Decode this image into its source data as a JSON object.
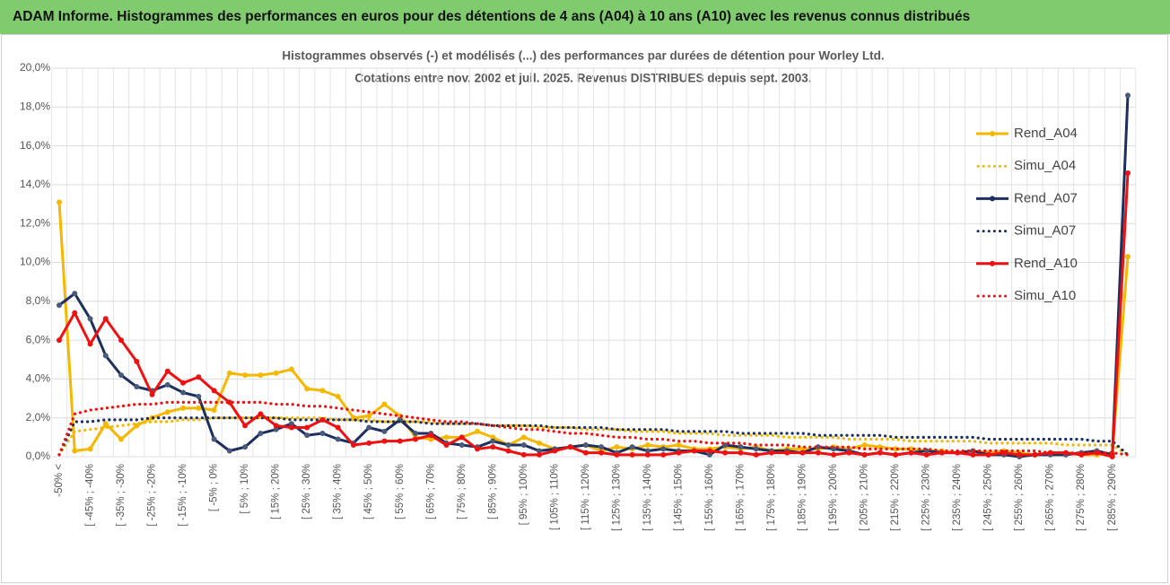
{
  "header": {
    "title": "ADAM Informe. Histogrammes des performances en euros pour des détentions de 4 ans (A04) à 10 ans (A10) avec les revenus connus distribués"
  },
  "chart_data": {
    "type": "line",
    "title": "Histogrammes observés (-) et modélisés (...) des performances par durées de détention pour Worley Ltd.",
    "subtitle": "Cotations entre nov. 2002 et juil. 2025. Revenus DISTRIBUES depuis sept. 2003.",
    "categories": [
      "-50% <",
      null,
      "[ -45% ; -40%",
      null,
      "[ -35% ; -30%",
      null,
      "[ -25% ; -20%",
      null,
      "[ -15% ; -10%",
      null,
      "[ -5% ; 0%",
      null,
      "[ 5% ; 10%",
      null,
      "[ 15% ; 20%",
      null,
      "[ 25% ; 30%",
      null,
      "[ 35% ; 40%",
      null,
      "[ 45% ; 50%",
      null,
      "[ 55% ; 60%",
      null,
      "[ 65% ; 70%",
      null,
      "[ 75% ; 80%",
      null,
      "[ 85% ; 90%",
      null,
      "[ 95% ; 100%",
      null,
      "[ 105% ; 110%",
      null,
      "[ 115% ; 120%",
      null,
      "[ 125% ; 130%",
      null,
      "[ 135% ; 140%",
      null,
      "[ 145% ; 150%",
      null,
      "[ 155% ; 160%",
      null,
      "[ 165% ; 170%",
      null,
      "[ 175% ; 180%",
      null,
      "[ 185% ; 190%",
      null,
      "[ 195% ; 200%",
      null,
      "[ 205% ; 210%",
      null,
      "[ 215% ; 220%",
      null,
      "[ 225% ; 230%",
      null,
      "[ 235% ; 240%",
      null,
      "[ 245% ; 250%",
      null,
      "[ 255% ; 260%",
      null,
      "[ 265% ; 270%",
      null,
      "[ 275% ; 280%",
      null,
      "[ 285% ; 290%",
      null
    ],
    "ylim": [
      0,
      20
    ],
    "yticks": [
      {
        "value": 0,
        "label": "0,0%"
      },
      {
        "value": 2,
        "label": "2,0%"
      },
      {
        "value": 4,
        "label": "4,0%"
      },
      {
        "value": 6,
        "label": "6,0%"
      },
      {
        "value": 8,
        "label": "8,0%"
      },
      {
        "value": 10,
        "label": "10,0%"
      },
      {
        "value": 12,
        "label": "12,0%"
      },
      {
        "value": 14,
        "label": "14,0%"
      },
      {
        "value": 16,
        "label": "16,0%"
      },
      {
        "value": 18,
        "label": "18,0%"
      },
      {
        "value": 20,
        "label": "20,0%"
      }
    ],
    "grid": true,
    "legend": "right",
    "series": [
      {
        "name": "Rend_A04",
        "color": "#f5b800",
        "dash": "solid",
        "markers": true,
        "values": [
          13.1,
          0.3,
          0.4,
          1.7,
          0.9,
          1.6,
          2.0,
          2.3,
          2.5,
          2.5,
          2.4,
          4.3,
          4.2,
          4.2,
          4.3,
          4.5,
          3.5,
          3.4,
          3.1,
          2.0,
          2.1,
          2.7,
          2.1,
          1.0,
          0.9,
          1.0,
          1.0,
          1.3,
          1.0,
          0.6,
          1.0,
          0.7,
          0.4,
          0.5,
          0.6,
          0.3,
          0.5,
          0.4,
          0.6,
          0.5,
          0.6,
          0.4,
          0.4,
          0.5,
          0.4,
          0.5,
          0.3,
          0.4,
          0.4,
          0.4,
          0.5,
          0.4,
          0.6,
          0.5,
          0.4,
          0.4,
          0.3,
          0.3,
          0.2,
          0.3,
          0.2,
          0.3,
          0.2,
          0.1,
          0.2,
          0.2,
          0.1,
          0.1,
          0.2,
          10.3
        ]
      },
      {
        "name": "Simu_A04",
        "color": "#f5b800",
        "dash": "dotted",
        "markers": false,
        "values": [
          0.1,
          1.3,
          1.4,
          1.5,
          1.6,
          1.7,
          1.8,
          1.8,
          1.9,
          1.9,
          2.0,
          2.0,
          2.0,
          2.0,
          2.0,
          2.0,
          2.0,
          2.0,
          1.9,
          1.9,
          1.9,
          1.8,
          1.8,
          1.8,
          1.8,
          1.7,
          1.7,
          1.7,
          1.6,
          1.6,
          1.6,
          1.5,
          1.5,
          1.5,
          1.4,
          1.4,
          1.4,
          1.3,
          1.3,
          1.3,
          1.2,
          1.2,
          1.2,
          1.1,
          1.1,
          1.1,
          1.1,
          1.0,
          1.0,
          1.0,
          1.0,
          0.9,
          0.9,
          0.9,
          0.9,
          0.8,
          0.8,
          0.8,
          0.8,
          0.8,
          0.7,
          0.7,
          0.7,
          0.7,
          0.7,
          0.6,
          0.6,
          0.6,
          0.6,
          0.1
        ]
      },
      {
        "name": "Rend_A07",
        "color": "#1c2f5e",
        "dash": "solid",
        "markers": true,
        "values": [
          7.8,
          8.4,
          7.1,
          5.2,
          4.2,
          3.6,
          3.4,
          3.7,
          3.3,
          3.1,
          0.9,
          0.3,
          0.5,
          1.2,
          1.4,
          1.7,
          1.1,
          1.2,
          0.9,
          0.7,
          1.5,
          1.3,
          1.9,
          1.2,
          1.2,
          0.7,
          0.6,
          0.5,
          0.8,
          0.6,
          0.6,
          0.3,
          0.4,
          0.5,
          0.6,
          0.5,
          0.2,
          0.5,
          0.3,
          0.4,
          0.3,
          0.3,
          0.1,
          0.6,
          0.5,
          0.4,
          0.3,
          0.3,
          0.2,
          0.5,
          0.4,
          0.3,
          0.1,
          0.2,
          0.1,
          0.2,
          0.3,
          0.2,
          0.2,
          0.3,
          0.1,
          0.1,
          0.0,
          0.1,
          0.1,
          0.1,
          0.2,
          0.3,
          0.1,
          18.6
        ]
      },
      {
        "name": "Simu_A07",
        "color": "#1c2f5e",
        "dash": "dotted",
        "markers": false,
        "values": [
          0.1,
          1.8,
          1.8,
          1.9,
          1.9,
          1.9,
          2.0,
          2.0,
          2.0,
          2.0,
          2.0,
          2.0,
          2.0,
          2.0,
          2.0,
          1.9,
          1.9,
          1.9,
          1.9,
          1.9,
          1.8,
          1.8,
          1.8,
          1.8,
          1.7,
          1.7,
          1.7,
          1.7,
          1.6,
          1.6,
          1.6,
          1.6,
          1.5,
          1.5,
          1.5,
          1.5,
          1.4,
          1.4,
          1.4,
          1.4,
          1.3,
          1.3,
          1.3,
          1.3,
          1.2,
          1.2,
          1.2,
          1.2,
          1.2,
          1.1,
          1.1,
          1.1,
          1.1,
          1.1,
          1.0,
          1.0,
          1.0,
          1.0,
          1.0,
          1.0,
          0.9,
          0.9,
          0.9,
          0.9,
          0.9,
          0.9,
          0.9,
          0.8,
          0.8,
          0.1
        ]
      },
      {
        "name": "Rend_A10",
        "color": "#ee1111",
        "dash": "solid",
        "markers": true,
        "values": [
          6.0,
          7.4,
          5.8,
          7.1,
          6.0,
          4.9,
          3.2,
          4.4,
          3.8,
          4.1,
          3.4,
          2.8,
          1.6,
          2.2,
          1.6,
          1.5,
          1.5,
          1.9,
          1.5,
          0.6,
          0.7,
          0.8,
          0.8,
          0.9,
          1.1,
          0.6,
          1.0,
          0.4,
          0.5,
          0.3,
          0.1,
          0.1,
          0.3,
          0.5,
          0.2,
          0.2,
          0.1,
          0.1,
          0.1,
          0.1,
          0.2,
          0.3,
          0.3,
          0.2,
          0.2,
          0.1,
          0.2,
          0.2,
          0.2,
          0.2,
          0.1,
          0.2,
          0.1,
          0.2,
          0.1,
          0.2,
          0.1,
          0.2,
          0.2,
          0.1,
          0.1,
          0.2,
          0.1,
          0.1,
          0.2,
          0.2,
          0.1,
          0.2,
          0.0,
          14.6
        ]
      },
      {
        "name": "Simu_A10",
        "color": "#ee1111",
        "dash": "dotted",
        "markers": false,
        "values": [
          0.1,
          2.2,
          2.4,
          2.5,
          2.6,
          2.7,
          2.7,
          2.8,
          2.8,
          2.8,
          2.8,
          2.8,
          2.8,
          2.8,
          2.7,
          2.7,
          2.6,
          2.6,
          2.5,
          2.4,
          2.3,
          2.2,
          2.1,
          2.0,
          1.9,
          1.8,
          1.8,
          1.7,
          1.6,
          1.5,
          1.4,
          1.4,
          1.3,
          1.2,
          1.2,
          1.1,
          1.0,
          1.0,
          0.9,
          0.9,
          0.8,
          0.8,
          0.7,
          0.7,
          0.7,
          0.6,
          0.6,
          0.6,
          0.5,
          0.5,
          0.5,
          0.5,
          0.4,
          0.4,
          0.4,
          0.4,
          0.4,
          0.3,
          0.3,
          0.3,
          0.3,
          0.3,
          0.3,
          0.3,
          0.2,
          0.2,
          0.2,
          0.2,
          0.2,
          0.1
        ]
      }
    ]
  }
}
